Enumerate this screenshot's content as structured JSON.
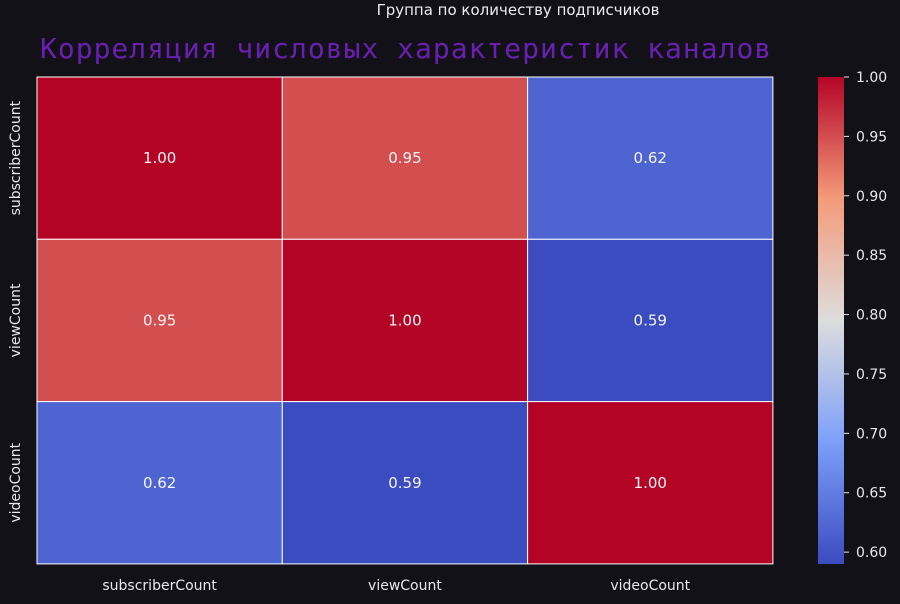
{
  "suptitle": "Группа по количеству подписчиков",
  "title": "Корреляция числовых характеристик каналов",
  "chart_data": {
    "type": "heatmap",
    "title": "Корреляция числовых характеристик каналов",
    "x_labels": [
      "subscriberCount",
      "viewCount",
      "videoCount"
    ],
    "y_labels": [
      "subscriberCount",
      "viewCount",
      "videoCount"
    ],
    "values": [
      [
        1.0,
        0.95,
        0.62
      ],
      [
        0.95,
        1.0,
        0.59
      ],
      [
        0.62,
        0.59,
        1.0
      ]
    ],
    "annotations": [
      [
        "1.00",
        "0.95",
        "0.62"
      ],
      [
        "0.95",
        "1.00",
        "0.59"
      ],
      [
        "0.62",
        "0.59",
        "1.00"
      ]
    ],
    "colormap": "coolwarm",
    "vmin": 0.59,
    "vmax": 1.0,
    "colorbar_ticks": [
      "1.00",
      "0.95",
      "0.90",
      "0.85",
      "0.80",
      "0.75",
      "0.70",
      "0.65",
      "0.60"
    ],
    "colorbar_tick_values": [
      1.0,
      0.95,
      0.9,
      0.85,
      0.8,
      0.75,
      0.7,
      0.65,
      0.6
    ],
    "title_color": "#6a1fb0",
    "background_color": "#121118"
  }
}
